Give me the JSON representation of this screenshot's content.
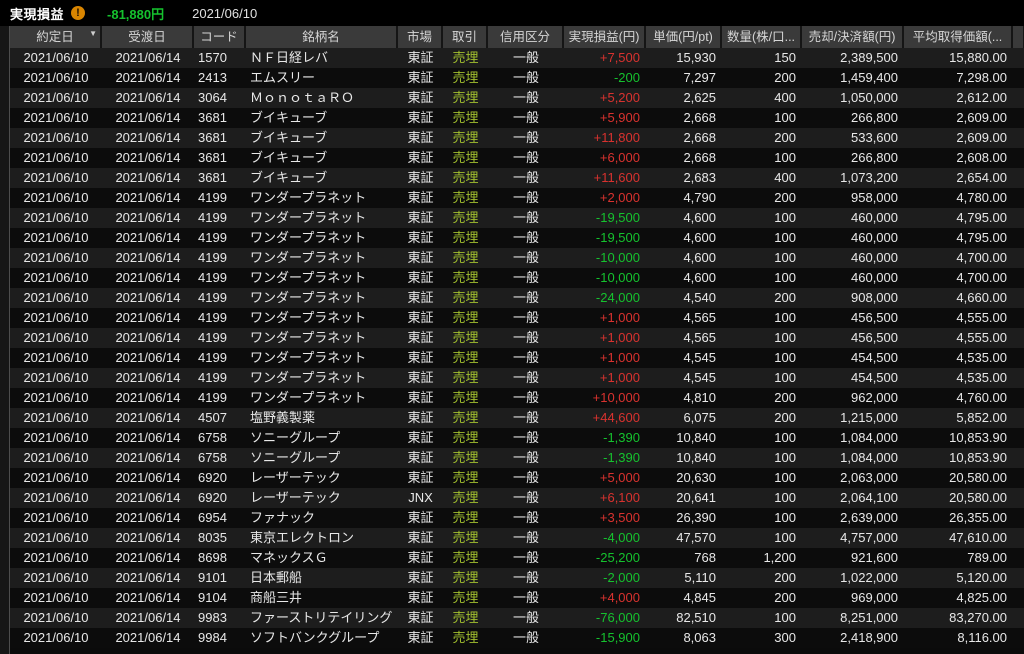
{
  "top_bar": {
    "title": "実現損益",
    "warning_icon": "exclamation-circle-icon",
    "total": "-81,880円",
    "total_sign": "neg",
    "date": "2021/06/10"
  },
  "colors": {
    "profit_red": "#d9322f",
    "loss_green": "#15c22e",
    "trade_type_green": "#a2bf2f",
    "warning_orange": "#d98500",
    "header_bg": "#3a3a3a",
    "row_odd_bg": "#1d1d1d",
    "row_even_bg": "#0c0c0c",
    "topbar_bg": "#000000"
  },
  "table": {
    "columns": [
      {
        "key": "trade_date",
        "label": "約定日",
        "sorted": "desc"
      },
      {
        "key": "settle_date",
        "label": "受渡日"
      },
      {
        "key": "code",
        "label": "コード"
      },
      {
        "key": "name",
        "label": "銘柄名"
      },
      {
        "key": "market",
        "label": "市場"
      },
      {
        "key": "trade",
        "label": "取引"
      },
      {
        "key": "margin",
        "label": "信用区分"
      },
      {
        "key": "pl",
        "label": "実現損益(円)"
      },
      {
        "key": "price",
        "label": "単価(円/pt)"
      },
      {
        "key": "qty",
        "label": "数量(株/口..."
      },
      {
        "key": "amount",
        "label": "売却/決済額(円)"
      },
      {
        "key": "avg_cost",
        "label": "平均取得価額(..."
      }
    ],
    "rows": [
      {
        "trade_date": "2021/06/10",
        "settle_date": "2021/06/14",
        "code": "1570",
        "name": "ＮＦ日経レバ",
        "market": "東証",
        "trade": "売埋",
        "margin": "一般",
        "pl": "+7,500",
        "price": "15,930",
        "qty": "150",
        "amount": "2,389,500",
        "avg_cost": "15,880.00"
      },
      {
        "trade_date": "2021/06/10",
        "settle_date": "2021/06/14",
        "code": "2413",
        "name": "エムスリー",
        "market": "東証",
        "trade": "売埋",
        "margin": "一般",
        "pl": "-200",
        "price": "7,297",
        "qty": "200",
        "amount": "1,459,400",
        "avg_cost": "7,298.00"
      },
      {
        "trade_date": "2021/06/10",
        "settle_date": "2021/06/14",
        "code": "3064",
        "name": "ＭｏｎｏｔａＲＯ",
        "market": "東証",
        "trade": "売埋",
        "margin": "一般",
        "pl": "+5,200",
        "price": "2,625",
        "qty": "400",
        "amount": "1,050,000",
        "avg_cost": "2,612.00"
      },
      {
        "trade_date": "2021/06/10",
        "settle_date": "2021/06/14",
        "code": "3681",
        "name": "ブイキューブ",
        "market": "東証",
        "trade": "売埋",
        "margin": "一般",
        "pl": "+5,900",
        "price": "2,668",
        "qty": "100",
        "amount": "266,800",
        "avg_cost": "2,609.00"
      },
      {
        "trade_date": "2021/06/10",
        "settle_date": "2021/06/14",
        "code": "3681",
        "name": "ブイキューブ",
        "market": "東証",
        "trade": "売埋",
        "margin": "一般",
        "pl": "+11,800",
        "price": "2,668",
        "qty": "200",
        "amount": "533,600",
        "avg_cost": "2,609.00"
      },
      {
        "trade_date": "2021/06/10",
        "settle_date": "2021/06/14",
        "code": "3681",
        "name": "ブイキューブ",
        "market": "東証",
        "trade": "売埋",
        "margin": "一般",
        "pl": "+6,000",
        "price": "2,668",
        "qty": "100",
        "amount": "266,800",
        "avg_cost": "2,608.00"
      },
      {
        "trade_date": "2021/06/10",
        "settle_date": "2021/06/14",
        "code": "3681",
        "name": "ブイキューブ",
        "market": "東証",
        "trade": "売埋",
        "margin": "一般",
        "pl": "+11,600",
        "price": "2,683",
        "qty": "400",
        "amount": "1,073,200",
        "avg_cost": "2,654.00"
      },
      {
        "trade_date": "2021/06/10",
        "settle_date": "2021/06/14",
        "code": "4199",
        "name": "ワンダープラネット",
        "market": "東証",
        "trade": "売埋",
        "margin": "一般",
        "pl": "+2,000",
        "price": "4,790",
        "qty": "200",
        "amount": "958,000",
        "avg_cost": "4,780.00"
      },
      {
        "trade_date": "2021/06/10",
        "settle_date": "2021/06/14",
        "code": "4199",
        "name": "ワンダープラネット",
        "market": "東証",
        "trade": "売埋",
        "margin": "一般",
        "pl": "-19,500",
        "price": "4,600",
        "qty": "100",
        "amount": "460,000",
        "avg_cost": "4,795.00"
      },
      {
        "trade_date": "2021/06/10",
        "settle_date": "2021/06/14",
        "code": "4199",
        "name": "ワンダープラネット",
        "market": "東証",
        "trade": "売埋",
        "margin": "一般",
        "pl": "-19,500",
        "price": "4,600",
        "qty": "100",
        "amount": "460,000",
        "avg_cost": "4,795.00"
      },
      {
        "trade_date": "2021/06/10",
        "settle_date": "2021/06/14",
        "code": "4199",
        "name": "ワンダープラネット",
        "market": "東証",
        "trade": "売埋",
        "margin": "一般",
        "pl": "-10,000",
        "price": "4,600",
        "qty": "100",
        "amount": "460,000",
        "avg_cost": "4,700.00"
      },
      {
        "trade_date": "2021/06/10",
        "settle_date": "2021/06/14",
        "code": "4199",
        "name": "ワンダープラネット",
        "market": "東証",
        "trade": "売埋",
        "margin": "一般",
        "pl": "-10,000",
        "price": "4,600",
        "qty": "100",
        "amount": "460,000",
        "avg_cost": "4,700.00"
      },
      {
        "trade_date": "2021/06/10",
        "settle_date": "2021/06/14",
        "code": "4199",
        "name": "ワンダープラネット",
        "market": "東証",
        "trade": "売埋",
        "margin": "一般",
        "pl": "-24,000",
        "price": "4,540",
        "qty": "200",
        "amount": "908,000",
        "avg_cost": "4,660.00"
      },
      {
        "trade_date": "2021/06/10",
        "settle_date": "2021/06/14",
        "code": "4199",
        "name": "ワンダープラネット",
        "market": "東証",
        "trade": "売埋",
        "margin": "一般",
        "pl": "+1,000",
        "price": "4,565",
        "qty": "100",
        "amount": "456,500",
        "avg_cost": "4,555.00"
      },
      {
        "trade_date": "2021/06/10",
        "settle_date": "2021/06/14",
        "code": "4199",
        "name": "ワンダープラネット",
        "market": "東証",
        "trade": "売埋",
        "margin": "一般",
        "pl": "+1,000",
        "price": "4,565",
        "qty": "100",
        "amount": "456,500",
        "avg_cost": "4,555.00"
      },
      {
        "trade_date": "2021/06/10",
        "settle_date": "2021/06/14",
        "code": "4199",
        "name": "ワンダープラネット",
        "market": "東証",
        "trade": "売埋",
        "margin": "一般",
        "pl": "+1,000",
        "price": "4,545",
        "qty": "100",
        "amount": "454,500",
        "avg_cost": "4,535.00"
      },
      {
        "trade_date": "2021/06/10",
        "settle_date": "2021/06/14",
        "code": "4199",
        "name": "ワンダープラネット",
        "market": "東証",
        "trade": "売埋",
        "margin": "一般",
        "pl": "+1,000",
        "price": "4,545",
        "qty": "100",
        "amount": "454,500",
        "avg_cost": "4,535.00"
      },
      {
        "trade_date": "2021/06/10",
        "settle_date": "2021/06/14",
        "code": "4199",
        "name": "ワンダープラネット",
        "market": "東証",
        "trade": "売埋",
        "margin": "一般",
        "pl": "+10,000",
        "price": "4,810",
        "qty": "200",
        "amount": "962,000",
        "avg_cost": "4,760.00"
      },
      {
        "trade_date": "2021/06/10",
        "settle_date": "2021/06/14",
        "code": "4507",
        "name": "塩野義製薬",
        "market": "東証",
        "trade": "売埋",
        "margin": "一般",
        "pl": "+44,600",
        "price": "6,075",
        "qty": "200",
        "amount": "1,215,000",
        "avg_cost": "5,852.00"
      },
      {
        "trade_date": "2021/06/10",
        "settle_date": "2021/06/14",
        "code": "6758",
        "name": "ソニーグループ",
        "market": "東証",
        "trade": "売埋",
        "margin": "一般",
        "pl": "-1,390",
        "price": "10,840",
        "qty": "100",
        "amount": "1,084,000",
        "avg_cost": "10,853.90"
      },
      {
        "trade_date": "2021/06/10",
        "settle_date": "2021/06/14",
        "code": "6758",
        "name": "ソニーグループ",
        "market": "東証",
        "trade": "売埋",
        "margin": "一般",
        "pl": "-1,390",
        "price": "10,840",
        "qty": "100",
        "amount": "1,084,000",
        "avg_cost": "10,853.90"
      },
      {
        "trade_date": "2021/06/10",
        "settle_date": "2021/06/14",
        "code": "6920",
        "name": "レーザーテック",
        "market": "東証",
        "trade": "売埋",
        "margin": "一般",
        "pl": "+5,000",
        "price": "20,630",
        "qty": "100",
        "amount": "2,063,000",
        "avg_cost": "20,580.00"
      },
      {
        "trade_date": "2021/06/10",
        "settle_date": "2021/06/14",
        "code": "6920",
        "name": "レーザーテック",
        "market": "JNX",
        "trade": "売埋",
        "margin": "一般",
        "pl": "+6,100",
        "price": "20,641",
        "qty": "100",
        "amount": "2,064,100",
        "avg_cost": "20,580.00"
      },
      {
        "trade_date": "2021/06/10",
        "settle_date": "2021/06/14",
        "code": "6954",
        "name": "ファナック",
        "market": "東証",
        "trade": "売埋",
        "margin": "一般",
        "pl": "+3,500",
        "price": "26,390",
        "qty": "100",
        "amount": "2,639,000",
        "avg_cost": "26,355.00"
      },
      {
        "trade_date": "2021/06/10",
        "settle_date": "2021/06/14",
        "code": "8035",
        "name": "東京エレクトロン",
        "market": "東証",
        "trade": "売埋",
        "margin": "一般",
        "pl": "-4,000",
        "price": "47,570",
        "qty": "100",
        "amount": "4,757,000",
        "avg_cost": "47,610.00"
      },
      {
        "trade_date": "2021/06/10",
        "settle_date": "2021/06/14",
        "code": "8698",
        "name": "マネックスＧ",
        "market": "東証",
        "trade": "売埋",
        "margin": "一般",
        "pl": "-25,200",
        "price": "768",
        "qty": "1,200",
        "amount": "921,600",
        "avg_cost": "789.00"
      },
      {
        "trade_date": "2021/06/10",
        "settle_date": "2021/06/14",
        "code": "9101",
        "name": "日本郵船",
        "market": "東証",
        "trade": "売埋",
        "margin": "一般",
        "pl": "-2,000",
        "price": "5,110",
        "qty": "200",
        "amount": "1,022,000",
        "avg_cost": "5,120.00"
      },
      {
        "trade_date": "2021/06/10",
        "settle_date": "2021/06/14",
        "code": "9104",
        "name": "商船三井",
        "market": "東証",
        "trade": "売埋",
        "margin": "一般",
        "pl": "+4,000",
        "price": "4,845",
        "qty": "200",
        "amount": "969,000",
        "avg_cost": "4,825.00"
      },
      {
        "trade_date": "2021/06/10",
        "settle_date": "2021/06/14",
        "code": "9983",
        "name": "ファーストリテイリング",
        "market": "東証",
        "trade": "売埋",
        "margin": "一般",
        "pl": "-76,000",
        "price": "82,510",
        "qty": "100",
        "amount": "8,251,000",
        "avg_cost": "83,270.00"
      },
      {
        "trade_date": "2021/06/10",
        "settle_date": "2021/06/14",
        "code": "9984",
        "name": "ソフトバンクグループ",
        "market": "東証",
        "trade": "売埋",
        "margin": "一般",
        "pl": "-15,900",
        "price": "8,063",
        "qty": "300",
        "amount": "2,418,900",
        "avg_cost": "8,116.00"
      }
    ]
  }
}
